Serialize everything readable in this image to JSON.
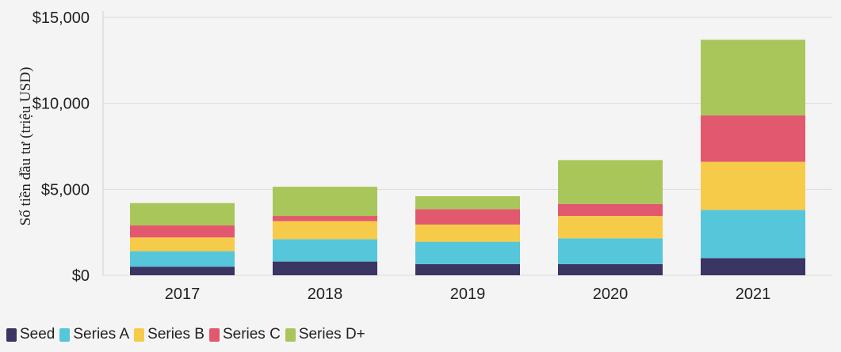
{
  "chart_data": {
    "type": "bar",
    "stacked": true,
    "title": "",
    "xlabel": "",
    "ylabel": "Số tiền đầu tư (triệu USD)",
    "ylim": [
      0,
      15000
    ],
    "yticks": [
      0,
      5000,
      10000,
      15000
    ],
    "ytick_labels": [
      "$0",
      "$5,000",
      "$10,000",
      "$15,000"
    ],
    "grid": true,
    "legend_position": "bottom-left",
    "categories": [
      "2017",
      "2018",
      "2019",
      "2020",
      "2021"
    ],
    "series": [
      {
        "name": "Seed",
        "color": "#3a3563",
        "values": [
          500,
          800,
          650,
          650,
          1000
        ]
      },
      {
        "name": "Series A",
        "color": "#56c6da",
        "values": [
          900,
          1300,
          1300,
          1500,
          2800
        ]
      },
      {
        "name": "Series B",
        "color": "#f7cb4a",
        "values": [
          800,
          1050,
          1000,
          1300,
          2800
        ]
      },
      {
        "name": "Series C",
        "color": "#e2596f",
        "values": [
          700,
          300,
          900,
          700,
          2700
        ]
      },
      {
        "name": "Series D+",
        "color": "#a9c65a",
        "values": [
          1300,
          1700,
          750,
          2550,
          4400
        ]
      }
    ]
  }
}
